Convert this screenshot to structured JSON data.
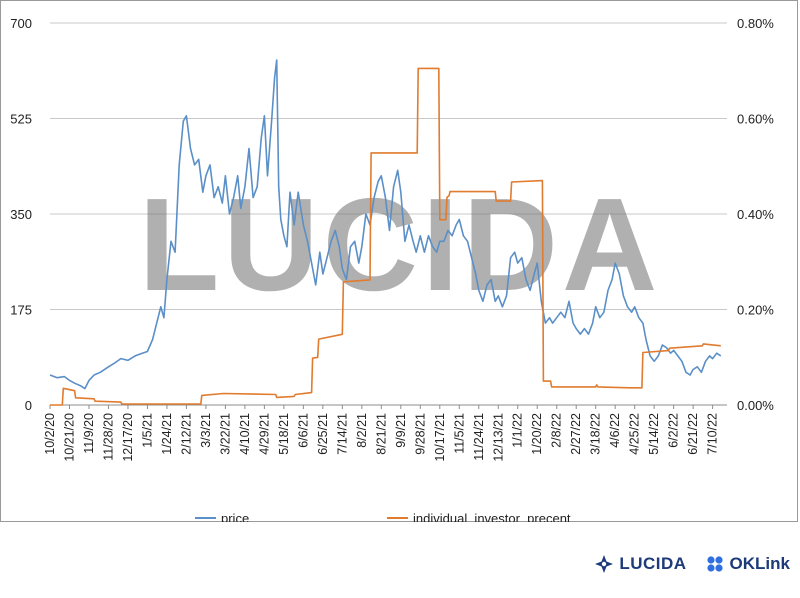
{
  "chart_data": {
    "type": "line",
    "title": "",
    "watermark": "LUCIDA",
    "y_left": {
      "ticks": [
        "700",
        "525",
        "350",
        "175",
        "0"
      ],
      "range": [
        0,
        700
      ]
    },
    "y_right": {
      "ticks": [
        "0.80%",
        "0.60%",
        "0.40%",
        "0.20%",
        "0.00%"
      ],
      "range": [
        0,
        0.8
      ],
      "unit": "%"
    },
    "x_ticks": [
      "10/2/20",
      "10/21/20",
      "11/9/20",
      "11/28/20",
      "12/17/20",
      "1/5/21",
      "1/24/21",
      "2/12/21",
      "3/3/21",
      "3/22/21",
      "4/10/21",
      "4/29/21",
      "5/18/21",
      "6/6/21",
      "6/25/21",
      "7/14/21",
      "8/2/21",
      "8/21/21",
      "9/9/21",
      "9/28/21",
      "10/17/21",
      "11/5/21",
      "11/24/21",
      "12/13/21",
      "1/1/22",
      "1/20/22",
      "2/8/22",
      "2/27/22",
      "3/18/22",
      "4/6/22",
      "4/25/22",
      "5/14/22",
      "6/2/22",
      "6/21/22",
      "7/10/22"
    ],
    "grid": true,
    "legend_position": "bottom",
    "series": [
      {
        "name": "price",
        "axis": "left",
        "color": "#5b8fc7",
        "points": [
          [
            "10/2/20",
            55
          ],
          [
            "10/9/20",
            50
          ],
          [
            "10/16/20",
            52
          ],
          [
            "10/21/20",
            45
          ],
          [
            "10/26/20",
            40
          ],
          [
            "11/1/20",
            35
          ],
          [
            "11/5/20",
            30
          ],
          [
            "11/9/20",
            45
          ],
          [
            "11/14/20",
            55
          ],
          [
            "11/20/20",
            60
          ],
          [
            "11/28/20",
            70
          ],
          [
            "12/5/20",
            78
          ],
          [
            "12/10/20",
            85
          ],
          [
            "12/17/20",
            82
          ],
          [
            "12/24/20",
            90
          ],
          [
            "12/31/20",
            95
          ],
          [
            "1/5/21",
            98
          ],
          [
            "1/10/21",
            120
          ],
          [
            "1/14/21",
            150
          ],
          [
            "1/18/21",
            180
          ],
          [
            "1/21/21",
            160
          ],
          [
            "1/24/21",
            230
          ],
          [
            "1/28/21",
            300
          ],
          [
            "2/1/21",
            280
          ],
          [
            "2/5/21",
            440
          ],
          [
            "2/9/21",
            520
          ],
          [
            "2/12/21",
            530
          ],
          [
            "2/16/21",
            470
          ],
          [
            "2/20/21",
            440
          ],
          [
            "2/24/21",
            450
          ],
          [
            "2/28/21",
            390
          ],
          [
            "3/3/21",
            420
          ],
          [
            "3/7/21",
            440
          ],
          [
            "3/11/21",
            380
          ],
          [
            "3/15/21",
            400
          ],
          [
            "3/19/21",
            370
          ],
          [
            "3/22/21",
            420
          ],
          [
            "3/26/21",
            350
          ],
          [
            "3/30/21",
            380
          ],
          [
            "4/3/21",
            420
          ],
          [
            "4/6/21",
            360
          ],
          [
            "4/10/21",
            400
          ],
          [
            "4/14/21",
            470
          ],
          [
            "4/18/21",
            380
          ],
          [
            "4/22/21",
            400
          ],
          [
            "4/26/21",
            490
          ],
          [
            "4/29/21",
            530
          ],
          [
            "5/2/21",
            420
          ],
          [
            "5/6/21",
            520
          ],
          [
            "5/9/21",
            600
          ],
          [
            "5/11/21",
            632
          ],
          [
            "5/13/21",
            400
          ],
          [
            "5/15/21",
            340
          ],
          [
            "5/18/21",
            310
          ],
          [
            "5/21/21",
            290
          ],
          [
            "5/24/21",
            390
          ],
          [
            "5/28/21",
            330
          ],
          [
            "6/1/21",
            390
          ],
          [
            "6/6/21",
            330
          ],
          [
            "6/10/21",
            300
          ],
          [
            "6/14/21",
            260
          ],
          [
            "6/18/21",
            220
          ],
          [
            "6/22/21",
            280
          ],
          [
            "6/25/21",
            240
          ],
          [
            "6/29/21",
            270
          ],
          [
            "7/3/21",
            300
          ],
          [
            "7/7/21",
            320
          ],
          [
            "7/11/21",
            290
          ],
          [
            "7/14/21",
            250
          ],
          [
            "7/18/21",
            230
          ],
          [
            "7/22/21",
            290
          ],
          [
            "7/26/21",
            300
          ],
          [
            "7/30/21",
            260
          ],
          [
            "8/2/21",
            290
          ],
          [
            "8/6/21",
            350
          ],
          [
            "8/10/21",
            330
          ],
          [
            "8/14/21",
            380
          ],
          [
            "8/18/21",
            410
          ],
          [
            "8/21/21",
            420
          ],
          [
            "8/25/21",
            380
          ],
          [
            "8/29/21",
            320
          ],
          [
            "9/2/21",
            400
          ],
          [
            "9/6/21",
            430
          ],
          [
            "9/9/21",
            390
          ],
          [
            "9/13/21",
            300
          ],
          [
            "9/17/21",
            330
          ],
          [
            "9/21/21",
            300
          ],
          [
            "9/24/21",
            280
          ],
          [
            "9/28/21",
            310
          ],
          [
            "10/2/21",
            280
          ],
          [
            "10/6/21",
            310
          ],
          [
            "10/10/21",
            290
          ],
          [
            "10/14/21",
            280
          ],
          [
            "10/17/21",
            300
          ],
          [
            "10/21/21",
            300
          ],
          [
            "10/25/21",
            320
          ],
          [
            "10/29/21",
            310
          ],
          [
            "11/2/21",
            330
          ],
          [
            "11/5/21",
            340
          ],
          [
            "11/9/21",
            310
          ],
          [
            "11/13/21",
            300
          ],
          [
            "11/17/21",
            270
          ],
          [
            "11/21/21",
            240
          ],
          [
            "11/24/21",
            210
          ],
          [
            "11/28/21",
            190
          ],
          [
            "12/2/21",
            220
          ],
          [
            "12/6/21",
            230
          ],
          [
            "12/10/21",
            190
          ],
          [
            "12/13/21",
            200
          ],
          [
            "12/17/21",
            180
          ],
          [
            "12/21/21",
            200
          ],
          [
            "12/25/21",
            270
          ],
          [
            "12/29/21",
            280
          ],
          [
            "1/1/22",
            260
          ],
          [
            "1/5/22",
            270
          ],
          [
            "1/9/22",
            230
          ],
          [
            "1/13/22",
            210
          ],
          [
            "1/17/22",
            240
          ],
          [
            "1/20/22",
            260
          ],
          [
            "1/24/22",
            190
          ],
          [
            "1/28/22",
            150
          ],
          [
            "2/1/22",
            160
          ],
          [
            "2/4/22",
            150
          ],
          [
            "2/8/22",
            160
          ],
          [
            "2/12/22",
            170
          ],
          [
            "2/16/22",
            160
          ],
          [
            "2/20/22",
            190
          ],
          [
            "2/24/22",
            150
          ],
          [
            "2/27/22",
            140
          ],
          [
            "3/3/22",
            130
          ],
          [
            "3/7/22",
            140
          ],
          [
            "3/11/22",
            130
          ],
          [
            "3/15/22",
            150
          ],
          [
            "3/18/22",
            180
          ],
          [
            "3/22/22",
            160
          ],
          [
            "3/26/22",
            170
          ],
          [
            "3/30/22",
            210
          ],
          [
            "4/3/22",
            230
          ],
          [
            "4/6/22",
            260
          ],
          [
            "4/10/22",
            240
          ],
          [
            "4/14/22",
            200
          ],
          [
            "4/18/22",
            180
          ],
          [
            "4/22/22",
            170
          ],
          [
            "4/25/22",
            180
          ],
          [
            "4/29/22",
            160
          ],
          [
            "5/3/22",
            150
          ],
          [
            "5/6/22",
            120
          ],
          [
            "5/10/22",
            90
          ],
          [
            "5/14/22",
            80
          ],
          [
            "5/18/22",
            90
          ],
          [
            "5/22/22",
            110
          ],
          [
            "5/26/22",
            105
          ],
          [
            "5/30/22",
            95
          ],
          [
            "6/2/22",
            100
          ],
          [
            "6/6/22",
            90
          ],
          [
            "6/10/22",
            80
          ],
          [
            "6/14/22",
            60
          ],
          [
            "6/18/22",
            55
          ],
          [
            "6/21/22",
            65
          ],
          [
            "6/25/22",
            70
          ],
          [
            "6/29/22",
            60
          ],
          [
            "7/3/22",
            80
          ],
          [
            "7/7/22",
            90
          ],
          [
            "7/10/22",
            85
          ],
          [
            "7/14/22",
            95
          ],
          [
            "7/18/22",
            90
          ]
        ]
      },
      {
        "name": "individual_investor_precent",
        "axis": "right",
        "color": "#e07b2f",
        "points": [
          [
            "10/2/20",
            0.0
          ],
          [
            "10/14/20",
            0.0
          ],
          [
            "10/15/20",
            0.035
          ],
          [
            "10/26/20",
            0.03
          ],
          [
            "10/27/20",
            0.015
          ],
          [
            "11/14/20",
            0.013
          ],
          [
            "11/15/20",
            0.008
          ],
          [
            "12/10/20",
            0.006
          ],
          [
            "12/11/20",
            0.002
          ],
          [
            "2/26/21",
            0.002
          ],
          [
            "2/27/21",
            0.02
          ],
          [
            "3/20/21",
            0.024
          ],
          [
            "5/10/21",
            0.022
          ],
          [
            "5/11/21",
            0.016
          ],
          [
            "5/28/21",
            0.018
          ],
          [
            "5/29/21",
            0.022
          ],
          [
            "6/14/21",
            0.026
          ],
          [
            "6/15/21",
            0.098
          ],
          [
            "6/20/21",
            0.1
          ],
          [
            "6/21/21",
            0.138
          ],
          [
            "7/14/21",
            0.148
          ],
          [
            "7/15/21",
            0.258
          ],
          [
            "8/10/21",
            0.262
          ],
          [
            "8/11/21",
            0.528
          ],
          [
            "9/25/21",
            0.528
          ],
          [
            "9/26/21",
            0.705
          ],
          [
            "10/16/21",
            0.705
          ],
          [
            "10/17/21",
            0.388
          ],
          [
            "10/23/21",
            0.388
          ],
          [
            "10/24/21",
            0.435
          ],
          [
            "10/26/21",
            0.438
          ],
          [
            "10/27/21",
            0.447
          ],
          [
            "12/10/21",
            0.447
          ],
          [
            "12/11/21",
            0.427
          ],
          [
            "12/25/21",
            0.427
          ],
          [
            "12/26/21",
            0.467
          ],
          [
            "1/25/22",
            0.47
          ],
          [
            "1/26/22",
            0.05
          ],
          [
            "2/2/22",
            0.05
          ],
          [
            "2/3/22",
            0.038
          ],
          [
            "3/18/22",
            0.038
          ],
          [
            "3/19/22",
            0.042
          ],
          [
            "3/20/22",
            0.038
          ],
          [
            "4/20/22",
            0.036
          ],
          [
            "5/2/22",
            0.036
          ],
          [
            "5/3/22",
            0.11
          ],
          [
            "5/28/22",
            0.114
          ],
          [
            "5/29/22",
            0.119
          ],
          [
            "6/30/22",
            0.124
          ],
          [
            "7/1/22",
            0.128
          ],
          [
            "7/18/22",
            0.124
          ]
        ]
      }
    ]
  },
  "footer": {
    "logo_lucida_text": "LUCIDA",
    "logo_oklink_text": "OKLink"
  }
}
